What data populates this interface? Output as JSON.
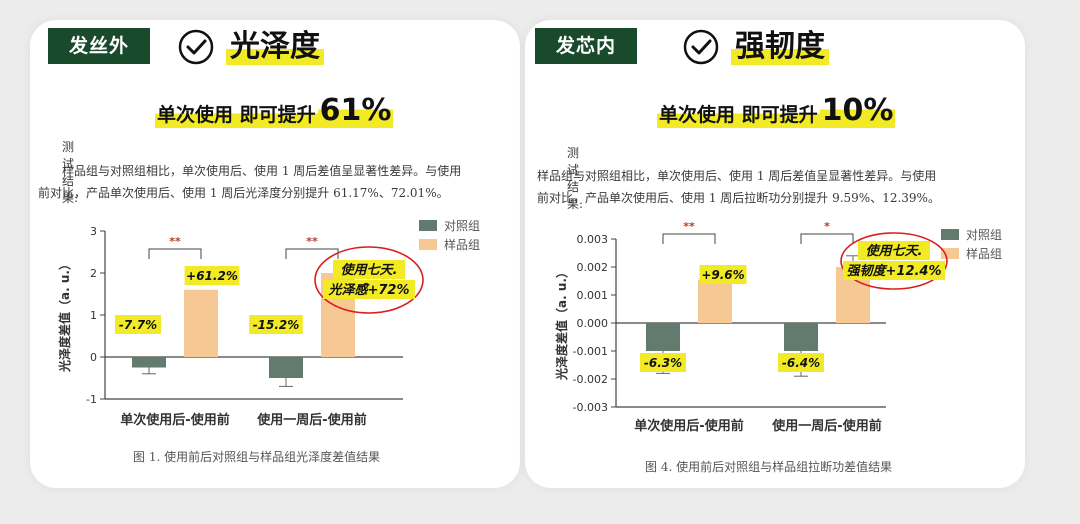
{
  "left": {
    "tag": "发丝外",
    "title": "光泽度",
    "subtitle_a": "单次使用 即可提升",
    "subtitle_b": "61%",
    "paper_head": "测试结果:",
    "paper_line1": "样品组与对照组相比，单次使用后、使用 1 周后差值呈显著性差异。与使用",
    "paper_line2": "前对比，产品单次使用后、使用 1 周后光泽度分别提升 61.17%、72.01%。",
    "caption": "图 1. 使用前后对照组与样品组光泽度差值结果"
  },
  "right": {
    "tag": "发芯内",
    "title": "强韧度",
    "subtitle_a": "单次使用 即可提升",
    "subtitle_b": "10%",
    "paper_head": "测试结果:",
    "paper_line1": "样品组与对照组相比，单次使用后、使用 1 周后差值呈显著性差异。与使用",
    "paper_line2": "前对比，产品单次使用后、使用 1 周后拉断功分别提升 9.59%、12.39%。",
    "caption": "图 4. 使用前后对照组与样品组拉断功差值结果"
  },
  "colors": {
    "control": "#637a6e",
    "sample": "#f6c894",
    "highlight": "#f2ea25",
    "sig": "#c0392b",
    "circle": "#d81e1e",
    "tag_bg": "#1a4a2c"
  },
  "chart_data": [
    {
      "type": "bar",
      "ylabel": "光泽度差值（a. u.）",
      "categories": [
        "单次使用后-使用前",
        "使用一周后-使用前"
      ],
      "series": [
        {
          "name": "对照组",
          "values": [
            -0.25,
            -0.5
          ],
          "errors": [
            0.15,
            0.2
          ]
        },
        {
          "name": "样品组",
          "values": [
            1.6,
            2.0
          ],
          "errors": [
            0.0,
            0.0
          ]
        }
      ],
      "ylim": [
        -1,
        3
      ],
      "yticks": [
        -1,
        0,
        1,
        2,
        3
      ],
      "ytick_labels": [
        "-1",
        "0",
        "1",
        "2",
        "3"
      ],
      "significance": [
        "**",
        "**"
      ],
      "control_labels": [
        "-7.7%",
        "-15.2%"
      ],
      "sample_labels": [
        "+61.2%",
        ""
      ],
      "annotation": [
        "使用七天.",
        "光泽感+72%"
      ],
      "legend": "top-right"
    },
    {
      "type": "bar",
      "ylabel": "光泽度差值（a. u.）",
      "categories": [
        "单次使用后-使用前",
        "使用一周后-使用前"
      ],
      "series": [
        {
          "name": "对照组",
          "values": [
            -0.001,
            -0.001
          ],
          "errors": [
            0.0008,
            0.0009
          ]
        },
        {
          "name": "样品组",
          "values": [
            0.00155,
            0.002
          ],
          "errors": [
            0.0004,
            0.0004
          ]
        }
      ],
      "ylim": [
        -0.003,
        0.003
      ],
      "yticks": [
        -0.003,
        -0.002,
        -0.001,
        0,
        0.001,
        0.002,
        0.003
      ],
      "ytick_labels": [
        "-0.003",
        "-0.002",
        "-0.001",
        "0.000",
        "0.001",
        "0.002",
        "0.003"
      ],
      "significance": [
        "**",
        "*"
      ],
      "control_labels": [
        "-6.3%",
        "-6.4%"
      ],
      "sample_labels": [
        "+9.6%",
        ""
      ],
      "annotation": [
        "使用七天.",
        "强韧度+12.4%"
      ],
      "legend": "top-right"
    }
  ]
}
